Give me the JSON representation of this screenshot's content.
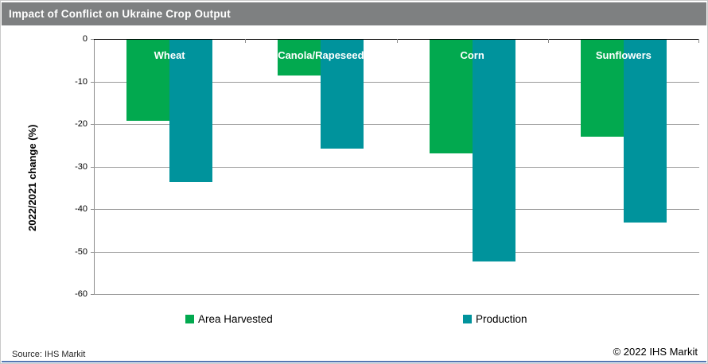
{
  "title_bar": {
    "title": "Impact of Conflict on Ukraine Crop Output",
    "bg_color": "#7e8081"
  },
  "chart_data": {
    "type": "bar",
    "categories": [
      "Wheat",
      "Canola/Rapeseed",
      "Corn",
      "Sunflowers"
    ],
    "series": [
      {
        "name": "Area Harvested",
        "color": "#02a94f",
        "values": [
          -19.0,
          -8.4,
          -26.8,
          -22.8
        ]
      },
      {
        "name": "Production",
        "color": "#00939c",
        "values": [
          -33.4,
          -25.6,
          -52.2,
          -42.9
        ]
      }
    ],
    "title": "Impact of Conflict on Ukraine Crop Output",
    "xlabel": "",
    "ylabel": "2022/2021 change (%)",
    "ylim": [
      -60,
      0
    ],
    "yticks": [
      0,
      -10,
      -20,
      -30,
      -40,
      -50,
      -60
    ],
    "grid": "horizontal",
    "legend_position": "bottom",
    "category_labels_inside": true
  },
  "footer": {
    "source": "Source: IHS Markit",
    "copyright": "© 2022 IHS Markit",
    "rule_color": "#5577b3"
  }
}
